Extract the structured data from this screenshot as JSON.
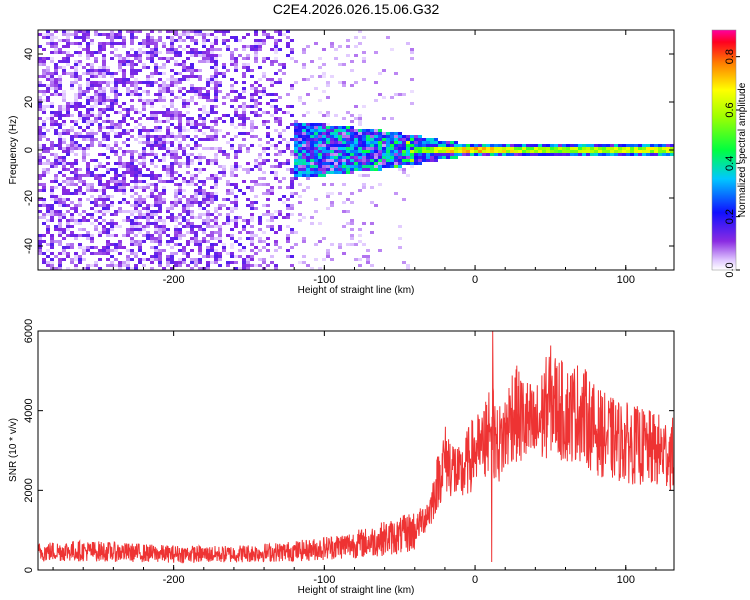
{
  "title": "C2E4.2026.026.15.06.G32",
  "chart_data": [
    {
      "type": "heatmap",
      "name": "spectrogram",
      "xlabel": "Height of straight line (km)",
      "ylabel": "Frequency (Hz)",
      "xlim": [
        -290,
        132
      ],
      "ylim": [
        -50,
        50
      ],
      "xticks": [
        -200,
        -100,
        0,
        100
      ],
      "yticks": [
        -40,
        -20,
        0,
        20,
        40
      ],
      "xtick_labels": [
        "-200",
        "-100",
        "0",
        "100"
      ],
      "ytick_labels": [
        "-40",
        "-20",
        "0",
        "20",
        "40"
      ],
      "colorbar": {
        "label": "Normalized spectral amplitude",
        "range": [
          0.0,
          0.9
        ],
        "ticks": [
          0.0,
          0.2,
          0.4,
          0.6,
          0.8
        ],
        "tick_labels": [
          "0.0",
          "0.2",
          "0.4",
          "0.6",
          "0.8"
        ]
      },
      "description_points": [
        {
          "x": -250,
          "noise_level": 0.15,
          "band_halfwidth_hz": 50
        },
        {
          "x": -170,
          "noise_level": 0.12,
          "band_halfwidth_hz": 50
        },
        {
          "x": -120,
          "noise_level": 0.25,
          "band_halfwidth_hz": 12
        },
        {
          "x": -60,
          "noise_level": 0.3,
          "band_halfwidth_hz": 8
        },
        {
          "x": -10,
          "noise_level": 0.7,
          "band_halfwidth_hz": 3
        },
        {
          "x": 50,
          "noise_level": 0.55,
          "band_halfwidth_hz": 3
        },
        {
          "x": 100,
          "noise_level": 0.6,
          "band_halfwidth_hz": 3
        }
      ]
    },
    {
      "type": "line",
      "name": "snr",
      "xlabel": "Height of straight line (km)",
      "ylabel": "SNR (10 * v/v)",
      "xlim": [
        -290,
        132
      ],
      "ylim": [
        0,
        6000
      ],
      "xticks": [
        -200,
        -100,
        0,
        100
      ],
      "yticks": [
        0,
        2000,
        4000,
        6000
      ],
      "xtick_labels": [
        "-200",
        "-100",
        "0",
        "100"
      ],
      "ytick_labels": [
        "0",
        "2000",
        "4000",
        "6000"
      ],
      "color": "#ee3333",
      "x": [
        -290,
        -270,
        -250,
        -230,
        -210,
        -190,
        -170,
        -150,
        -130,
        -110,
        -100,
        -90,
        -80,
        -70,
        -60,
        -50,
        -40,
        -30,
        -25,
        -20,
        -15,
        -10,
        -5,
        0,
        5,
        10,
        15,
        20,
        25,
        30,
        40,
        50,
        60,
        70,
        80,
        90,
        100,
        110,
        120,
        132
      ],
      "y": [
        450,
        480,
        470,
        440,
        410,
        400,
        390,
        420,
        450,
        500,
        550,
        600,
        650,
        700,
        800,
        850,
        1000,
        1500,
        2200,
        2800,
        2600,
        2300,
        2700,
        3000,
        3000,
        3700,
        3100,
        3400,
        4000,
        3800,
        3500,
        4300,
        3900,
        4000,
        3500,
        3300,
        3200,
        3100,
        3000,
        2900
      ]
    }
  ]
}
